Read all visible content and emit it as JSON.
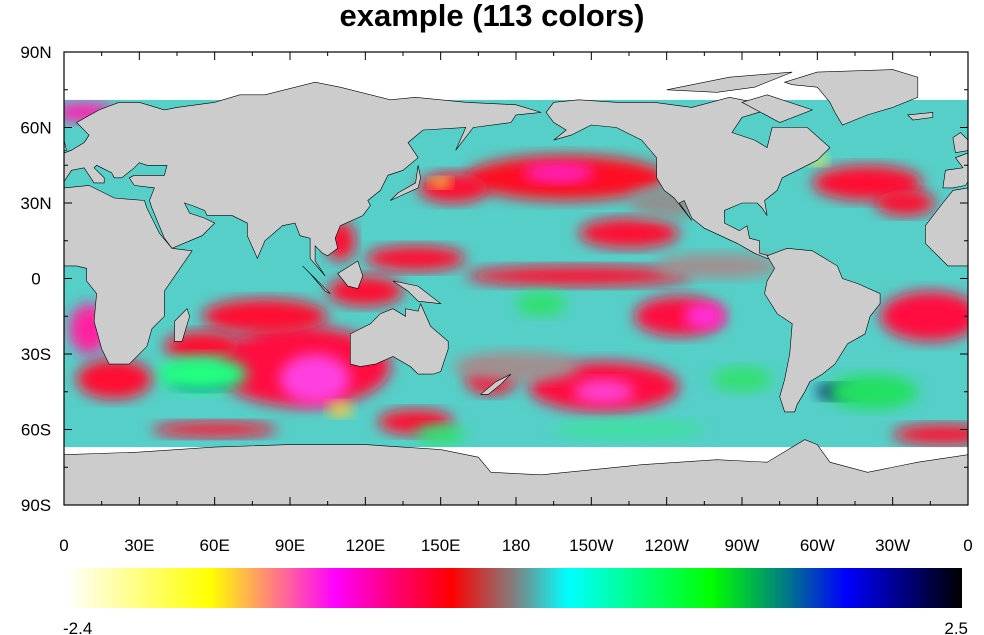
{
  "title": "example (113 colors)",
  "chart_data": {
    "type": "heatmap",
    "projection": "cylindrical equidistant, global",
    "title": "example (113 colors)",
    "x_tick_labels": [
      "0",
      "30E",
      "60E",
      "90E",
      "120E",
      "150E",
      "180",
      "150W",
      "120W",
      "90W",
      "60W",
      "30W",
      "0"
    ],
    "y_tick_labels": [
      "90N",
      "60N",
      "30N",
      "0",
      "30S",
      "60S",
      "90S"
    ],
    "xlim": [
      0,
      360
    ],
    "ylim": [
      -90,
      90
    ],
    "land_color": "#cccccc",
    "missing_color": "#ffffff",
    "colorbar": {
      "min_label": "-2.4",
      "max_label": "2.5",
      "n_colors": 113,
      "colors": [
        "#ffffff",
        "#ffff00",
        "#ff00ff",
        "#ff0080",
        "#ff0000",
        "#808080",
        "#00ffff",
        "#00ff80",
        "#00ff00",
        "#008080",
        "#0000ff",
        "#000000"
      ]
    }
  }
}
